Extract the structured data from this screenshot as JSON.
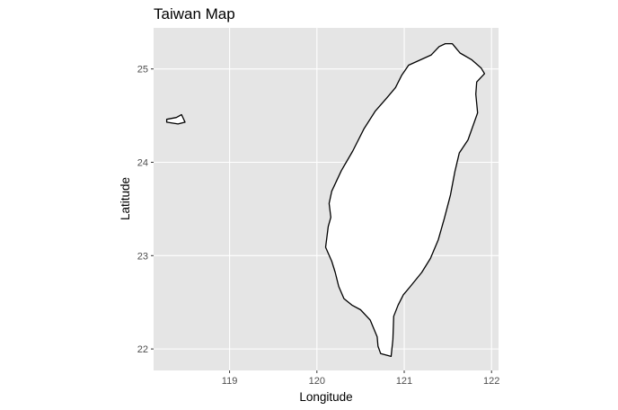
{
  "chart_data": {
    "type": "map",
    "title": "Taiwan Map",
    "xlabel": "Longitude",
    "ylabel": "Latitude",
    "x_ticks": [
      119,
      120,
      121,
      122
    ],
    "y_ticks": [
      22,
      23,
      24,
      25
    ],
    "x_tick_labels": [
      "119",
      "120",
      "121",
      "122"
    ],
    "y_tick_labels": [
      "22",
      "23",
      "24",
      "25"
    ],
    "xlim": [
      118.13,
      122.08
    ],
    "ylim": [
      21.77,
      25.44
    ],
    "grid": true,
    "colors": {
      "panel_background": "#e5e5e5",
      "gridline": "#ffffff",
      "land_fill": "#ffffff",
      "land_outline": "#000000",
      "tick_label": "#4d4d4d"
    },
    "features": [
      {
        "name": "Taiwan",
        "coords": [
          [
            121.31,
            25.15
          ],
          [
            121.4,
            25.24
          ],
          [
            121.47,
            25.27
          ],
          [
            121.55,
            25.27
          ],
          [
            121.64,
            25.17
          ],
          [
            121.77,
            25.1
          ],
          [
            121.88,
            25.01
          ],
          [
            121.92,
            24.95
          ],
          [
            121.83,
            24.86
          ],
          [
            121.82,
            24.73
          ],
          [
            121.84,
            24.53
          ],
          [
            121.73,
            24.24
          ],
          [
            121.63,
            24.1
          ],
          [
            121.58,
            23.9
          ],
          [
            121.53,
            23.65
          ],
          [
            121.46,
            23.4
          ],
          [
            121.39,
            23.17
          ],
          [
            121.3,
            22.97
          ],
          [
            121.2,
            22.82
          ],
          [
            121.07,
            22.67
          ],
          [
            120.99,
            22.58
          ],
          [
            120.93,
            22.47
          ],
          [
            120.88,
            22.35
          ],
          [
            120.87,
            22.1
          ],
          [
            120.85,
            21.92
          ],
          [
            120.73,
            21.95
          ],
          [
            120.7,
            22.03
          ],
          [
            120.69,
            22.13
          ],
          [
            120.61,
            22.31
          ],
          [
            120.5,
            22.42
          ],
          [
            120.4,
            22.47
          ],
          [
            120.31,
            22.54
          ],
          [
            120.25,
            22.67
          ],
          [
            120.21,
            22.82
          ],
          [
            120.17,
            22.94
          ],
          [
            120.1,
            23.09
          ],
          [
            120.13,
            23.31
          ],
          [
            120.16,
            23.41
          ],
          [
            120.14,
            23.56
          ],
          [
            120.17,
            23.69
          ],
          [
            120.28,
            23.91
          ],
          [
            120.41,
            24.12
          ],
          [
            120.54,
            24.36
          ],
          [
            120.67,
            24.55
          ],
          [
            120.8,
            24.69
          ],
          [
            120.9,
            24.8
          ],
          [
            120.97,
            24.93
          ],
          [
            121.05,
            25.04
          ]
        ]
      },
      {
        "name": "Kinmen",
        "coords": [
          [
            118.28,
            24.46
          ],
          [
            118.39,
            24.48
          ],
          [
            118.45,
            24.51
          ],
          [
            118.49,
            24.43
          ],
          [
            118.41,
            24.41
          ],
          [
            118.28,
            24.43
          ]
        ]
      }
    ]
  }
}
